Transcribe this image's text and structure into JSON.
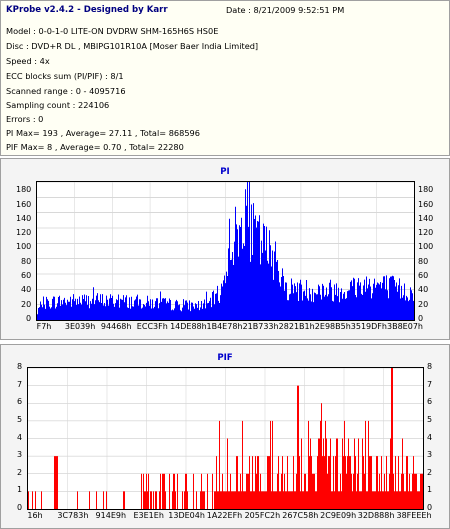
{
  "info": {
    "app_title": "KProbe v2.4.2 - Designed by Karr",
    "date": "Date : 8/21/2009 9:52:51 PM",
    "lines": [
      "Model : 0-0-1-0 LITE-ON DVDRW SHM-165H6S HS0E",
      "Disc : DVD+R DL , MBIPG101R10A [Moser Baer India Limited]",
      "Speed : 4x",
      "ECC blocks sum (PI/PIF) : 8/1",
      "Scanned range : 0 - 4095716",
      "Sampling count : 224106",
      "Errors : 0",
      "PI Max= 193 , Average= 27.11 , Total= 868596",
      "PIF Max= 8 , Average= 0.70 , Total= 22280"
    ]
  },
  "chart_data": [
    {
      "type": "area",
      "title": "PI",
      "color": "#0000ff",
      "ylim": [
        0,
        193
      ],
      "y_ticks": [
        "0",
        "20",
        "40",
        "60",
        "80",
        "100",
        "120",
        "140",
        "160",
        "180"
      ],
      "x_tick_labels": [
        "F7h",
        "3E039h",
        "94468h",
        "ECC3Fh",
        "14DE88h",
        "1B4E78h",
        "21B733h",
        "2821B1h",
        "2E98B5h",
        "3519DFh",
        "3B8E07h"
      ],
      "profile": [
        {
          "x": 0.0,
          "y": 8
        },
        {
          "x": 0.01,
          "y": 25
        },
        {
          "x": 0.05,
          "y": 28
        },
        {
          "x": 0.15,
          "y": 30
        },
        {
          "x": 0.25,
          "y": 28
        },
        {
          "x": 0.33,
          "y": 25
        },
        {
          "x": 0.38,
          "y": 22
        },
        {
          "x": 0.45,
          "y": 22
        },
        {
          "x": 0.49,
          "y": 45
        },
        {
          "x": 0.51,
          "y": 120
        },
        {
          "x": 0.54,
          "y": 130
        },
        {
          "x": 0.55,
          "y": 193
        },
        {
          "x": 0.57,
          "y": 130
        },
        {
          "x": 0.6,
          "y": 110
        },
        {
          "x": 0.62,
          "y": 100
        },
        {
          "x": 0.635,
          "y": 105
        },
        {
          "x": 0.65,
          "y": 50
        },
        {
          "x": 0.7,
          "y": 45
        },
        {
          "x": 0.8,
          "y": 45
        },
        {
          "x": 0.88,
          "y": 55
        },
        {
          "x": 0.95,
          "y": 48
        },
        {
          "x": 1.0,
          "y": 40
        }
      ]
    },
    {
      "type": "bar",
      "title": "PIF",
      "color": "#ff0000",
      "ylim": [
        0,
        8
      ],
      "y_ticks": [
        "0",
        "1",
        "2",
        "3",
        "4",
        "5",
        "6",
        "7",
        "8"
      ],
      "x_tick_labels": [
        "16h",
        "3C783h",
        "914E9h",
        "E3E1Eh",
        "13DE04h",
        "1A22EFh",
        "205FC2h",
        "267C58h",
        "2C9E09h",
        "32D888h",
        "38FEEEh"
      ],
      "max": 8
    }
  ]
}
